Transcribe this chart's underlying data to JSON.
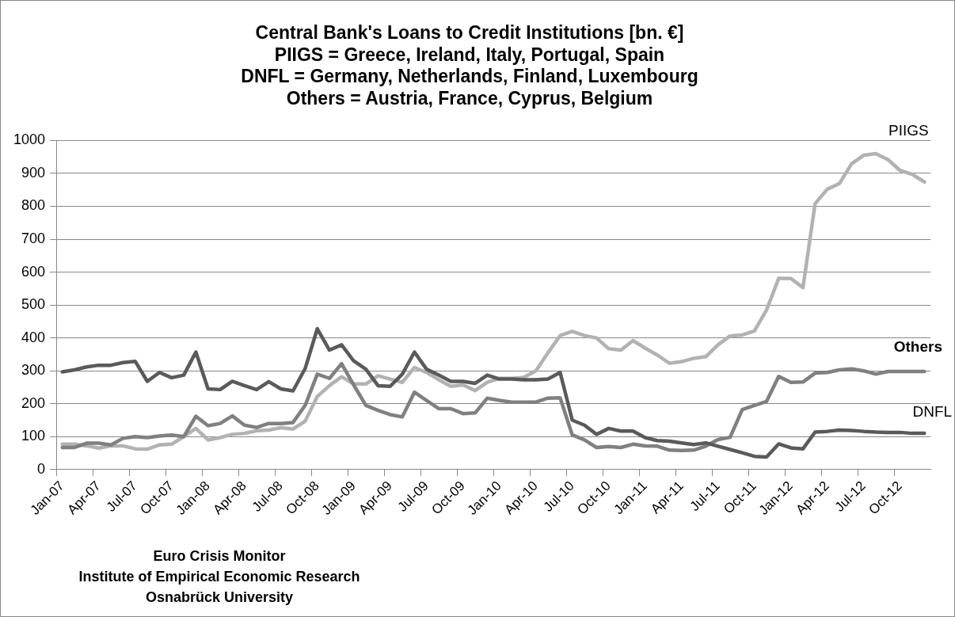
{
  "chart_data": {
    "type": "line",
    "title": "Central Bank's Loans to Credit Institutions [bn. €]\nPIIGS = Greece, Ireland, Italy, Portugal, Spain\nDNFL = Germany, Netherlands, Finland, Luxembourg\nOthers = Austria, France, Cyprus, Belgium",
    "categories": [
      "Jan-07",
      null,
      null,
      "Apr-07",
      null,
      null,
      "Jul-07",
      null,
      null,
      "Oct-07",
      null,
      null,
      "Jan-08",
      null,
      null,
      "Apr-08",
      null,
      null,
      "Jul-08",
      null,
      null,
      "Oct-08",
      null,
      null,
      "Jan-09",
      null,
      null,
      "Apr-09",
      null,
      null,
      "Jul-09",
      null,
      null,
      "Oct-09",
      null,
      null,
      "Jan-10",
      null,
      null,
      "Apr-10",
      null,
      null,
      "Jul-10",
      null,
      null,
      "Oct-10",
      null,
      null,
      "Jan-11",
      null,
      null,
      "Apr-11",
      null,
      null,
      "Jul-11",
      null,
      null,
      "Oct-11",
      null,
      null,
      "Jan-12",
      null,
      null,
      "Apr-12",
      null,
      null,
      "Jul-12",
      null,
      null,
      "Oct-12",
      null,
      null
    ],
    "series": [
      {
        "name": "DNFL",
        "color": "#5a5a5a",
        "values": [
          297,
          303,
          312,
          317,
          317,
          325,
          329,
          268,
          295,
          279,
          287,
          357,
          245,
          243,
          268,
          255,
          243,
          267,
          245,
          239,
          307,
          428,
          363,
          379,
          330,
          305,
          255,
          253,
          290,
          357,
          305,
          287,
          268,
          268,
          262,
          287,
          275,
          275,
          273,
          273,
          275,
          295,
          150,
          135,
          107,
          125,
          117,
          117,
          97,
          88,
          86,
          81,
          76,
          81,
          71,
          61,
          51,
          40,
          38,
          78,
          66,
          63,
          114,
          116,
          120,
          119,
          116,
          114,
          113,
          113,
          110,
          110
        ]
      },
      {
        "name": "Others",
        "color": "#808080",
        "values": [
          67,
          67,
          80,
          80,
          75,
          95,
          100,
          97,
          102,
          105,
          100,
          162,
          133,
          140,
          163,
          135,
          128,
          140,
          140,
          143,
          195,
          290,
          277,
          322,
          257,
          195,
          180,
          167,
          160,
          235,
          210,
          185,
          185,
          170,
          172,
          217,
          210,
          205,
          205,
          205,
          217,
          218,
          105,
          90,
          67,
          70,
          67,
          77,
          72,
          71,
          59,
          58,
          59,
          71,
          91,
          98,
          182,
          195,
          207,
          283,
          265,
          266,
          293,
          295,
          303,
          306,
          300,
          290,
          298,
          298,
          298,
          298
        ]
      },
      {
        "name": "PIIGS",
        "color": "#b2b2b2",
        "values": [
          77,
          77,
          72,
          65,
          72,
          72,
          63,
          62,
          75,
          77,
          100,
          125,
          90,
          97,
          107,
          110,
          118,
          120,
          127,
          123,
          147,
          222,
          255,
          282,
          260,
          260,
          285,
          275,
          265,
          310,
          295,
          273,
          253,
          257,
          240,
          265,
          277,
          277,
          280,
          300,
          355,
          407,
          420,
          407,
          400,
          367,
          363,
          392,
          369,
          348,
          323,
          328,
          338,
          343,
          379,
          406,
          409,
          421,
          485,
          581,
          581,
          553,
          808,
          852,
          869,
          929,
          955,
          960,
          942,
          909,
          897,
          874
        ]
      }
    ],
    "ylim": [
      0,
      1000
    ],
    "yticks": [
      0,
      100,
      200,
      300,
      400,
      500,
      600,
      700,
      800,
      900,
      1000
    ],
    "grid": "y",
    "legend": false,
    "marker": "none",
    "line_style": "solid",
    "annotations": [
      "Euro Crisis Monitor",
      "Institute of Empirical Economic Research",
      "Osnabrück University"
    ]
  }
}
